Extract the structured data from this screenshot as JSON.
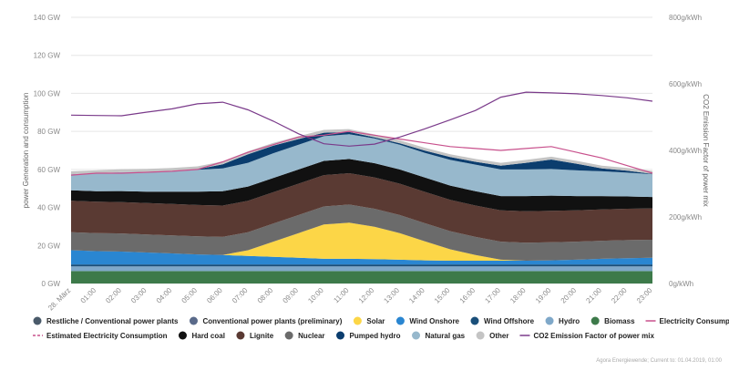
{
  "chart_data": {
    "type": "area",
    "x": [
      "28. März",
      "01:00",
      "02:00",
      "03:00",
      "04:00",
      "05:00",
      "06:00",
      "07:00",
      "08:00",
      "09:00",
      "10:00",
      "11:00",
      "12:00",
      "13:00",
      "14:00",
      "15:00",
      "16:00",
      "17:00",
      "18:00",
      "19:00",
      "20:00",
      "21:00",
      "22:00",
      "23:00"
    ],
    "left_axis": {
      "label": "power Generation and consumption",
      "ticks": [
        "0 GW",
        "20 GW",
        "40 GW",
        "60 GW",
        "80 GW",
        "100 GW",
        "120 GW",
        "140 GW"
      ],
      "ylim": [
        0,
        140
      ]
    },
    "right_axis": {
      "label": "CO2 Emission Factor of power mix",
      "ticks": [
        "0g/kWh",
        "200g/kWh",
        "400g/kWh",
        "600g/kWh",
        "800g/kWh"
      ],
      "ylim": [
        0,
        800
      ]
    },
    "stacked_series": [
      {
        "name": "Biomass",
        "color": "#3d7a4a",
        "values": [
          6.5,
          6.5,
          6.5,
          6.5,
          6.5,
          6.5,
          6.5,
          6.5,
          6.5,
          6.5,
          6.5,
          6.5,
          6.5,
          6.5,
          6.5,
          6.5,
          6.5,
          6.5,
          6.5,
          6.5,
          6.5,
          6.5,
          6.5,
          6.5
        ]
      },
      {
        "name": "Hydro",
        "color": "#7fa8c9",
        "values": [
          2.5,
          2.5,
          2.5,
          2.5,
          2.5,
          2.5,
          2.5,
          2.5,
          2.5,
          2.5,
          2.5,
          2.5,
          2.5,
          2.5,
          2.5,
          2.5,
          2.5,
          2.5,
          2.5,
          2.5,
          2.5,
          2.5,
          2.5,
          2.5
        ]
      },
      {
        "name": "Wind Offshore",
        "color": "#1a4f7a",
        "values": [
          1.0,
          1.0,
          1.0,
          1.0,
          1.0,
          1.0,
          1.0,
          1.0,
          1.0,
          1.0,
          1.0,
          1.0,
          1.0,
          1.0,
          1.0,
          1.0,
          1.0,
          1.0,
          1.0,
          1.0,
          1.0,
          1.0,
          1.0,
          1.0
        ]
      },
      {
        "name": "Wind Onshore",
        "color": "#2a86d1",
        "values": [
          7.5,
          7.0,
          6.8,
          6.3,
          5.8,
          5.3,
          5.0,
          4.5,
          4.0,
          3.5,
          3.0,
          3.0,
          2.8,
          2.5,
          2.2,
          2.0,
          2.0,
          2.0,
          2.0,
          2.2,
          2.5,
          3.0,
          3.3,
          3.5
        ]
      },
      {
        "name": "Solar",
        "color": "#fcd647",
        "values": [
          0,
          0,
          0,
          0,
          0,
          0,
          0,
          3,
          8,
          13,
          18,
          19,
          17,
          14,
          10,
          6,
          3,
          0.5,
          0,
          0,
          0,
          0,
          0,
          0
        ]
      },
      {
        "name": "Nuclear",
        "color": "#6b6b6b",
        "values": [
          9.5,
          9.5,
          9.5,
          9.5,
          9.5,
          9.5,
          9.5,
          9.5,
          9.5,
          9.5,
          9.5,
          9.5,
          9.5,
          9.5,
          9.5,
          9.5,
          9.5,
          9.5,
          9.5,
          9.5,
          9.5,
          9.5,
          9.5,
          9.5
        ]
      },
      {
        "name": "Lignite",
        "color": "#5a3a33",
        "values": [
          16.5,
          16.5,
          16.5,
          16.5,
          16.5,
          16.5,
          16.5,
          16.5,
          16.5,
          16.5,
          16.5,
          16.5,
          16.5,
          16.5,
          16.5,
          16.5,
          16.5,
          16.5,
          16.5,
          16.5,
          16.5,
          16.5,
          16.5,
          16.5
        ]
      },
      {
        "name": "Hard coal",
        "color": "#111111",
        "values": [
          5.5,
          5.5,
          5.8,
          6.0,
          6.5,
          7.0,
          7.5,
          7.5,
          7.5,
          7.5,
          7.5,
          7.5,
          7.5,
          7.5,
          7.5,
          7.5,
          7.5,
          7.5,
          8.0,
          8.0,
          7.5,
          7.0,
          6.5,
          6.0
        ]
      },
      {
        "name": "Natural gas",
        "color": "#97b8cc",
        "values": [
          8.5,
          9.5,
          10.0,
          10.5,
          11.0,
          11.5,
          12.0,
          12.5,
          13.0,
          13.0,
          13.0,
          13.0,
          13.0,
          13.0,
          13.0,
          13.5,
          14.0,
          14.0,
          14.0,
          14.0,
          13.5,
          13.0,
          12.5,
          12.0
        ]
      },
      {
        "name": "Pumped hydro",
        "color": "#0b3d6e",
        "values": [
          0,
          0,
          0,
          0,
          0,
          0.3,
          2.2,
          4.5,
          4.0,
          3.0,
          1.8,
          1.2,
          0.6,
          0.8,
          1.2,
          1.5,
          1.5,
          2.0,
          3.5,
          5.0,
          3.5,
          1.5,
          1.0,
          0.2
        ]
      },
      {
        "name": "Other",
        "color": "#c4c4c4",
        "values": [
          1.5,
          1.5,
          1.5,
          1.5,
          1.5,
          1.5,
          1.5,
          1.5,
          1.5,
          1.5,
          1.5,
          1.5,
          1.5,
          1.5,
          1.5,
          1.5,
          1.5,
          1.5,
          1.5,
          1.5,
          1.5,
          1.5,
          1.5,
          1.5
        ]
      }
    ],
    "line_series": [
      {
        "name": "Electricity Consumption",
        "color": "#c8508c",
        "axis": "left",
        "values": [
          57,
          58,
          58,
          58.5,
          59,
          60,
          64,
          69,
          73,
          77,
          78,
          80,
          78,
          76,
          74,
          72,
          71,
          70,
          71,
          72,
          69,
          66,
          62,
          58
        ]
      },
      {
        "name": "CO2 Emission Factor of power mix",
        "color": "#7a3a8a",
        "axis": "right",
        "values": [
          506,
          505,
          504,
          515,
          525,
          540,
          545,
          522,
          488,
          450,
          420,
          413,
          419,
          440,
          465,
          492,
          520,
          560,
          575,
          573,
          570,
          565,
          558,
          548
        ]
      }
    ],
    "legend": [
      {
        "label": "Restliche / Conventional power plants",
        "color": "#4a5a6a",
        "kind": "dot"
      },
      {
        "label": "Conventional power plants (preliminary)",
        "color": "#5a6a8a",
        "kind": "dot"
      },
      {
        "label": "Solar",
        "color": "#fcd647",
        "kind": "dot"
      },
      {
        "label": "Wind Onshore",
        "color": "#2a86d1",
        "kind": "dot"
      },
      {
        "label": "Wind Offshore",
        "color": "#1a4f7a",
        "kind": "dot"
      },
      {
        "label": "Hydro",
        "color": "#7fa8c9",
        "kind": "dot"
      },
      {
        "label": "Biomass",
        "color": "#3d7a4a",
        "kind": "dot"
      },
      {
        "label": "Electricity Consumption",
        "color": "#c8508c",
        "kind": "line"
      },
      {
        "label": "Estimated Electricity Consumption",
        "color": "#c8508c",
        "kind": "dash"
      },
      {
        "label": "Hard coal",
        "color": "#111111",
        "kind": "dot"
      },
      {
        "label": "Lignite",
        "color": "#5a3a33",
        "kind": "dot"
      },
      {
        "label": "Nuclear",
        "color": "#6b6b6b",
        "kind": "dot"
      },
      {
        "label": "Pumped hydro",
        "color": "#0b3d6e",
        "kind": "dot"
      },
      {
        "label": "Natural gas",
        "color": "#97b8cc",
        "kind": "dot"
      },
      {
        "label": "Other",
        "color": "#c4c4c4",
        "kind": "dot"
      },
      {
        "label": "CO2 Emission Factor of power mix",
        "color": "#7a3a8a",
        "kind": "line"
      }
    ],
    "footer": "Agora Energiewende; Current to: 01.04.2019, 01:00",
    "grid": true
  }
}
